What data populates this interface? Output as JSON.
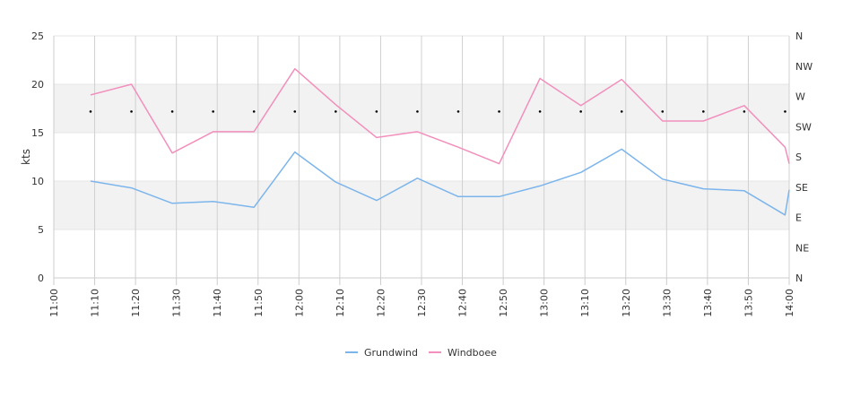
{
  "chart_data": {
    "type": "line",
    "ylabel": "kts",
    "ylim": [
      0,
      25
    ],
    "y_ticks": [
      "0",
      "5",
      "10",
      "15",
      "20",
      "25"
    ],
    "x_ticks": [
      "11:00",
      "11:10",
      "11:20",
      "11:30",
      "11:40",
      "11:50",
      "12:00",
      "12:10",
      "12:20",
      "12:30",
      "12:40",
      "12:50",
      "13:00",
      "13:10",
      "13:20",
      "13:30",
      "13:40",
      "13:50",
      "14:00"
    ],
    "x_range": [
      "11:00",
      "14:00"
    ],
    "right_axis_ticks": [
      "N",
      "NE",
      "E",
      "SE",
      "S",
      "SW",
      "W",
      "NW",
      "N"
    ],
    "grid": true,
    "bands": [
      [
        5,
        10
      ],
      [
        15,
        20
      ]
    ],
    "legend_position": "bottom",
    "series": [
      {
        "name": "Grundwind",
        "color": "#7cb5ec",
        "x": [
          "11:09",
          "11:19",
          "11:29",
          "11:39",
          "11:49",
          "11:59",
          "12:09",
          "12:19",
          "12:29",
          "12:39",
          "12:49",
          "12:59",
          "13:09",
          "13:19",
          "13:29",
          "13:39",
          "13:49",
          "13:59",
          "14:00"
        ],
        "values": [
          10.0,
          9.3,
          7.7,
          7.9,
          7.3,
          13.0,
          9.9,
          8.0,
          10.3,
          8.4,
          8.4,
          9.5,
          10.9,
          13.3,
          10.2,
          9.2,
          9.0,
          6.5,
          9.1
        ]
      },
      {
        "name": "Windboee",
        "color": "#f28fbc",
        "x": [
          "11:09",
          "11:19",
          "11:29",
          "11:39",
          "11:49",
          "11:59",
          "12:09",
          "12:19",
          "12:29",
          "12:39",
          "12:49",
          "12:59",
          "13:09",
          "13:19",
          "13:29",
          "13:39",
          "13:49",
          "13:59",
          "14:00"
        ],
        "values": [
          18.9,
          20.0,
          12.9,
          15.1,
          15.1,
          21.6,
          17.9,
          14.5,
          15.1,
          13.5,
          11.8,
          20.6,
          17.8,
          20.5,
          16.2,
          16.2,
          17.8,
          13.5,
          11.8
        ]
      }
    ],
    "direction_markers": {
      "x": [
        "11:09",
        "11:19",
        "11:29",
        "11:39",
        "11:49",
        "11:59",
        "12:09",
        "12:19",
        "12:29",
        "12:39",
        "12:49",
        "12:59",
        "13:09",
        "13:19",
        "13:29",
        "13:39",
        "13:49",
        "13:59"
      ],
      "direction": "WSW"
    }
  }
}
